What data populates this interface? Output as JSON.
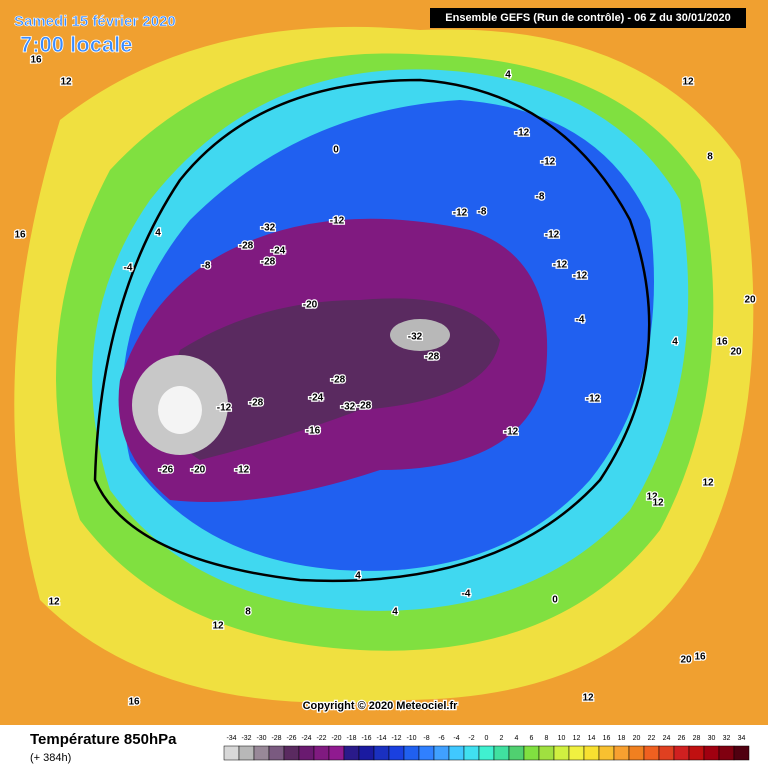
{
  "header": {
    "date": "Samedi 15 février 2020",
    "time": "7:00 locale",
    "run": "Ensemble GEFS  (Run de contrôle)   -  06 Z du 30/01/2020"
  },
  "copyright": "Copyright © 2020 Meteociel.fr",
  "legend": {
    "title": "Température 850hPa",
    "lead": "(+ 384h)",
    "ticks": [
      -34,
      -32,
      -30,
      -28,
      -26,
      -24,
      -22,
      -20,
      -18,
      -16,
      -14,
      -12,
      -10,
      -8,
      -6,
      -4,
      -2,
      0,
      2,
      4,
      6,
      8,
      10,
      12,
      14,
      16,
      18,
      20,
      22,
      24,
      26,
      28,
      30,
      32,
      34
    ],
    "colors": [
      "#d8d8d8",
      "#b8b8b8",
      "#988898",
      "#7a5a80",
      "#5a2a60",
      "#6a1a70",
      "#801a80",
      "#901a90",
      "#2a1a8a",
      "#1a1aa0",
      "#1a30c0",
      "#1a40e0",
      "#2060f0",
      "#3080ff",
      "#40a0ff",
      "#40c8ff",
      "#40e0f0",
      "#40f0d0",
      "#40e0a0",
      "#50d070",
      "#80e040",
      "#a0e040",
      "#d0f040",
      "#f0f040",
      "#f8e030",
      "#f8c030",
      "#f8a030",
      "#f08020",
      "#f06020",
      "#e04020",
      "#d02020",
      "#c01010",
      "#a00010",
      "#800010",
      "#500010"
    ]
  },
  "map_labels": [
    16,
    12,
    4,
    12,
    0,
    -12,
    -12,
    -8,
    -12,
    -8,
    -12,
    -12,
    -12,
    -12,
    -28,
    -32,
    -24,
    -28,
    -20,
    -32,
    -28,
    -28,
    -24,
    -32,
    -28,
    -16,
    -12,
    -28,
    -20,
    -26,
    -12,
    -12,
    -12,
    -8,
    -4,
    4,
    16,
    20,
    16,
    20,
    12,
    12,
    12,
    4,
    0,
    -4,
    8,
    4,
    12,
    12,
    16,
    20,
    12,
    16,
    8,
    -4,
    4
  ]
}
